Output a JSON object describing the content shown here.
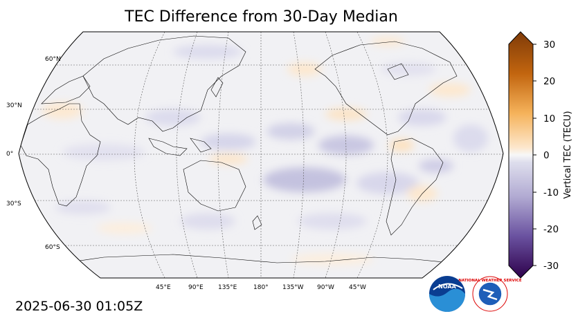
{
  "title": "TEC Difference from 30-Day Median",
  "timestamp": "2025-06-30 01:05Z",
  "map": {
    "projection": "Robinson",
    "central_longitude": 180,
    "lat_labels": [
      "60°N",
      "30°N",
      "0°",
      "30°S",
      "60°S"
    ],
    "lon_labels": [
      "45°E",
      "90°E",
      "135°E",
      "180°",
      "135°W",
      "90°W",
      "45°W"
    ],
    "gridlines": "dashed"
  },
  "colorbar": {
    "label": "Vertical TEC (TECU)",
    "min": -30,
    "max": 30,
    "ticks": [
      "30",
      "20",
      "10",
      "0",
      "-10",
      "-20",
      "-30"
    ],
    "extend": "both",
    "colormap": "PuOr_r"
  },
  "logos": {
    "noaa": "NOAA",
    "nws_ring": "NATIONAL WEATHER SERVICE"
  },
  "colors": {
    "background_map": "#f2f2f4",
    "positive": "#fde6c8",
    "negative": "#c9c8e2"
  }
}
